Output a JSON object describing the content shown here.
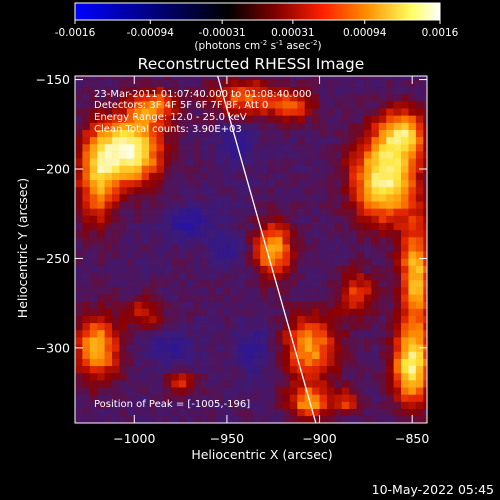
{
  "colorbar": {
    "tick_labels": [
      "-0.0016",
      "-0.00094",
      "-0.00031",
      "0.00031",
      "0.00094",
      "0.0016"
    ],
    "tick_values": [
      -0.0016,
      -0.00094,
      -0.00031,
      0.00031,
      0.00094,
      0.0016
    ],
    "range": [
      -0.0016,
      0.0016
    ],
    "units_prefix": "(photons cm",
    "units_exp1": "-2",
    "units_mid": " s",
    "units_exp2": "-1",
    "units_end": " asec",
    "units_exp3": "-2",
    "units_close": ")",
    "colors": [
      "#0000ff",
      "#000000",
      "#800000",
      "#ff2000",
      "#ff9000",
      "#ffff60",
      "#ffffff"
    ]
  },
  "chart_data": {
    "type": "heatmap",
    "title": "Reconstructed RHESSI Image",
    "xlabel": "Heliocentric X (arcsec)",
    "ylabel": "Heliocentric Y (arcsec)",
    "xlim": [
      -1032,
      -842
    ],
    "ylim": [
      -342,
      -148
    ],
    "x_ticks": [
      -1000,
      -950,
      -900,
      -850
    ],
    "x_tick_labels": [
      "−1000",
      "−950",
      "−900",
      "−850"
    ],
    "y_ticks": [
      -150,
      -200,
      -250,
      -300
    ],
    "y_tick_labels": [
      "−150",
      "−200",
      "−250",
      "−300"
    ],
    "grid": false,
    "limb_line": [
      [
        -955,
        -148
      ],
      [
        -902,
        -342
      ]
    ],
    "hot_regions": [
      {
        "x": -1003,
        "y": -190,
        "rx": 20,
        "ry": 22,
        "value": 0.0016
      },
      {
        "x": -1020,
        "y": -205,
        "rx": 12,
        "ry": 30,
        "value": 0.001
      },
      {
        "x": -990,
        "y": -165,
        "rx": 15,
        "ry": 12,
        "value": 0.0009
      },
      {
        "x": -940,
        "y": -160,
        "rx": 22,
        "ry": 12,
        "value": 0.0008
      },
      {
        "x": -915,
        "y": -165,
        "rx": 14,
        "ry": 10,
        "value": 0.0007
      },
      {
        "x": -865,
        "y": -205,
        "rx": 20,
        "ry": 28,
        "value": 0.0015
      },
      {
        "x": -855,
        "y": -180,
        "rx": 14,
        "ry": 16,
        "value": 0.0011
      },
      {
        "x": -848,
        "y": -260,
        "rx": 10,
        "ry": 35,
        "value": 0.0012
      },
      {
        "x": -850,
        "y": -310,
        "rx": 12,
        "ry": 25,
        "value": 0.0014
      },
      {
        "x": -880,
        "y": -270,
        "rx": 12,
        "ry": 15,
        "value": 0.0007
      },
      {
        "x": -905,
        "y": -300,
        "rx": 18,
        "ry": 22,
        "value": 0.001
      },
      {
        "x": -925,
        "y": -245,
        "rx": 12,
        "ry": 18,
        "value": 0.0011
      },
      {
        "x": -1020,
        "y": -300,
        "rx": 14,
        "ry": 22,
        "value": 0.0011
      },
      {
        "x": -995,
        "y": -280,
        "rx": 12,
        "ry": 10,
        "value": 0.0006
      },
      {
        "x": -975,
        "y": -320,
        "rx": 10,
        "ry": 8,
        "value": 0.0006
      },
      {
        "x": -905,
        "y": -330,
        "rx": 14,
        "ry": 10,
        "value": 0.001
      },
      {
        "x": -885,
        "y": -330,
        "rx": 8,
        "ry": 8,
        "value": 0.0006
      }
    ],
    "cold_regions": [
      {
        "x": -970,
        "y": -230,
        "rx": 15,
        "ry": 10,
        "value": -0.0005
      },
      {
        "x": -950,
        "y": -245,
        "rx": 10,
        "ry": 10,
        "value": -0.0004
      },
      {
        "x": -980,
        "y": -300,
        "rx": 15,
        "ry": 10,
        "value": -0.0004
      },
      {
        "x": -945,
        "y": -185,
        "rx": 10,
        "ry": 12,
        "value": -0.0004
      },
      {
        "x": -935,
        "y": -300,
        "rx": 12,
        "ry": 15,
        "value": -0.0004
      }
    ]
  },
  "annotations": {
    "line1": "23-Mar-2011 01:07:40.000 to 01:08:40.000",
    "line2": "Detectors: 3F 4F 5F 6F 7F 8F, Att 0",
    "line3": "Energy Range: 12.0 - 25.0 keV",
    "line4": "Clean   Total counts: 3.90E+03",
    "peak": "Position of Peak = [-1005,-196]"
  },
  "footer": {
    "timestamp": "10-May-2022 05:45"
  }
}
